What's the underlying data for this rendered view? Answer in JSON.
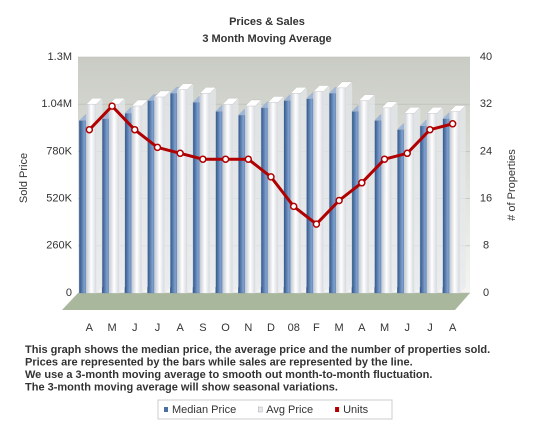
{
  "chart_data": {
    "type": "bar-line",
    "title": "Prices & Sales",
    "subtitle": "3 Month Moving Average",
    "y_label": "Sold Price",
    "y2_label": "# of Properties",
    "categories": [
      "A",
      "M",
      "J",
      "J",
      "A",
      "S",
      "O",
      "N",
      "D",
      "08",
      "F",
      "M",
      "A",
      "M",
      "J",
      "J",
      "A"
    ],
    "series": [
      {
        "name": "Median Price",
        "type": "bar",
        "color": "#4a6fa5",
        "values": [
          950000,
          960000,
          990000,
          1060000,
          1100000,
          1050000,
          1000000,
          980000,
          1020000,
          1060000,
          1070000,
          1100000,
          1000000,
          950000,
          900000,
          920000,
          960000
        ]
      },
      {
        "name": "Avg Price",
        "type": "bar",
        "color": "#e6e8ec",
        "values": [
          1040000,
          1040000,
          1030000,
          1080000,
          1120000,
          1100000,
          1040000,
          1030000,
          1050000,
          1100000,
          1110000,
          1130000,
          1060000,
          1020000,
          990000,
          990000,
          1000000
        ]
      },
      {
        "name": "Units",
        "type": "line",
        "axis": "y2",
        "color": "#b00000",
        "values": [
          27,
          31,
          27,
          24,
          23,
          22,
          22,
          22,
          19,
          14,
          11,
          15,
          18,
          22,
          23,
          27,
          28
        ]
      }
    ],
    "ylim": [
      0,
      1300000
    ],
    "yticks": [
      0,
      {
        "value": 260000,
        "label": "260K"
      },
      {
        "value": 520000,
        "label": "520K"
      },
      {
        "value": 780000,
        "label": "780K"
      },
      {
        "value": 1040000,
        "label": "1.04M"
      },
      {
        "value": 1300000,
        "label": "1.3M"
      }
    ],
    "y2lim": [
      0,
      40
    ],
    "y2ticks": [
      0,
      8,
      16,
      24,
      32,
      40
    ],
    "description": [
      "This graph shows the median price, the average price and the number of properties sold.",
      "Prices are represented by the bars while sales are represented by the line.",
      "We use a 3-month moving average to smooth out month-to-month fluctuation.",
      "The 3-month moving average will show seasonal variations."
    ]
  }
}
